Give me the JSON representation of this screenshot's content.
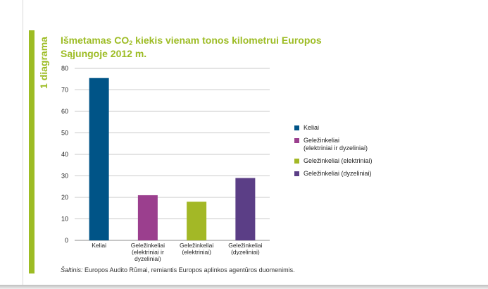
{
  "side_label": "1 diagrama",
  "title_part1": "Išmetamas CO",
  "title_sub": "2",
  "title_part2": " kiekis vienam tonos kilometrui Europos Sąjungoje 2012 m.",
  "source_label": "Šaltinis:",
  "source_text": " Europos Audito Rūmai, remiantis Europos aplinkos agentūros duomenimis.",
  "colors": {
    "accent": "#9dbc24"
  },
  "chart_data": {
    "type": "bar",
    "categories": [
      "Keliai",
      "Geležinkeliai\n(elektriniai ir\ndyzeliniai)",
      "Geležinkeliai\n(elektriniai)",
      "Geležinkeliai\n(dyzeliniai)"
    ],
    "values": [
      75.5,
      21,
      18,
      29
    ],
    "colors": [
      "#005487",
      "#9b3f8e",
      "#a3b826",
      "#5b3e86"
    ],
    "ylim": [
      0,
      80
    ],
    "yticks": [
      0,
      10,
      20,
      30,
      40,
      50,
      60,
      70,
      80
    ],
    "grid": true,
    "legend": [
      {
        "label": "Keliai",
        "color": "#005487"
      },
      {
        "label": "Geležinkeliai\n(elektriniai ir dyzeliniai)",
        "color": "#9b3f8e"
      },
      {
        "label": "Geležinkeliai (elektriniai)",
        "color": "#a3b826"
      },
      {
        "label": "Geležinkeliai (dyzeliniai)",
        "color": "#5b3e86"
      }
    ],
    "legend_position": "right"
  }
}
